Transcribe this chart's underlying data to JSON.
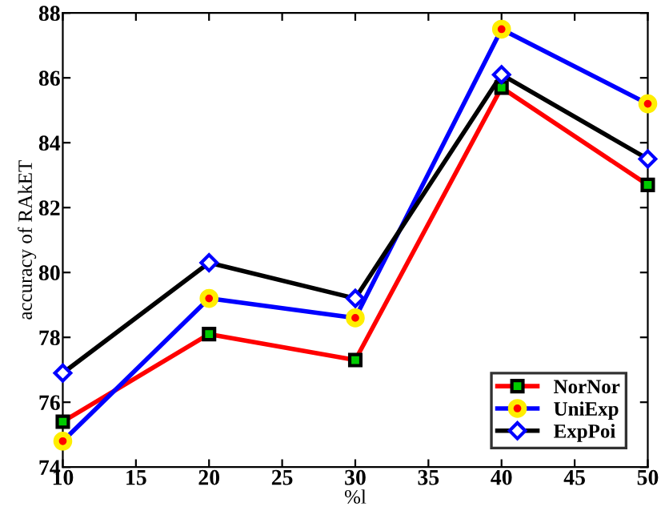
{
  "chart_data": {
    "type": "line",
    "xlabel": "%l",
    "ylabel": "accuracy of RAkET",
    "x": [
      10,
      20,
      30,
      40,
      50
    ],
    "series": [
      {
        "name": "NorNor",
        "color": "#ff0000",
        "marker": "square",
        "values": [
          75.4,
          78.1,
          77.3,
          85.7,
          82.7
        ]
      },
      {
        "name": "UniExp",
        "color": "#0000ff",
        "marker": "circle",
        "values": [
          74.8,
          79.2,
          78.6,
          87.5,
          85.2
        ]
      },
      {
        "name": "ExpPoi",
        "color": "#000000",
        "marker": "diamond",
        "values": [
          76.9,
          80.3,
          79.2,
          86.1,
          83.5
        ]
      }
    ],
    "xlim": [
      10,
      50
    ],
    "ylim": [
      74,
      88
    ],
    "xticks": [
      10,
      15,
      20,
      25,
      30,
      35,
      40,
      45,
      50
    ],
    "yticks": [
      74,
      76,
      78,
      80,
      82,
      84,
      86,
      88
    ],
    "grid": false,
    "legend": "bottom right",
    "line_style": "solid"
  }
}
